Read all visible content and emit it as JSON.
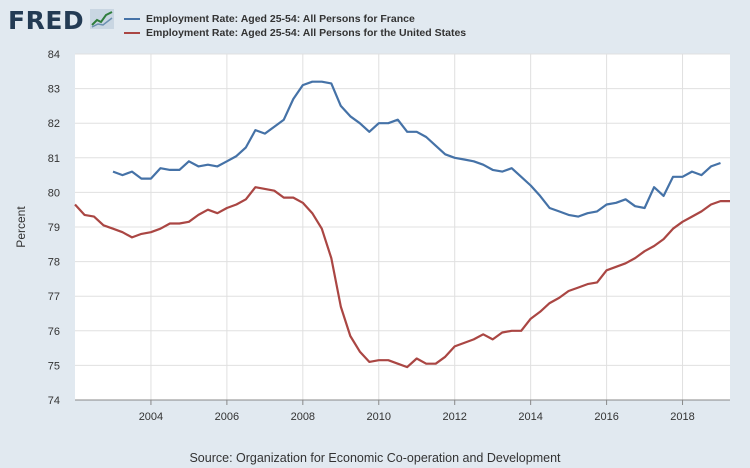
{
  "header": {
    "logo_text": "FRED",
    "logo_icon": "chart-line-icon"
  },
  "source": "Source: Organization for Economic Co-operation and Development",
  "chart_data": {
    "type": "line",
    "title": "",
    "xlabel": "",
    "ylabel": "Percent",
    "xlim": [
      2002.0,
      2019.25
    ],
    "ylim": [
      74,
      84
    ],
    "y_ticks": [
      74,
      75,
      76,
      77,
      78,
      79,
      80,
      81,
      82,
      83,
      84
    ],
    "x_ticks": [
      2004,
      2006,
      2008,
      2010,
      2012,
      2014,
      2016,
      2018
    ],
    "grid": true,
    "legend_position": "top",
    "series": [
      {
        "name": "Employment Rate: Aged 25-54: All Persons for France",
        "color": "#4572a7",
        "x": [
          2003.0,
          2003.25,
          2003.5,
          2003.75,
          2004.0,
          2004.25,
          2004.5,
          2004.75,
          2005.0,
          2005.25,
          2005.5,
          2005.75,
          2006.0,
          2006.25,
          2006.5,
          2006.75,
          2007.0,
          2007.25,
          2007.5,
          2007.75,
          2008.0,
          2008.25,
          2008.5,
          2008.75,
          2009.0,
          2009.25,
          2009.5,
          2009.75,
          2010.0,
          2010.25,
          2010.5,
          2010.75,
          2011.0,
          2011.25,
          2011.5,
          2011.75,
          2012.0,
          2012.25,
          2012.5,
          2012.75,
          2013.0,
          2013.25,
          2013.5,
          2013.75,
          2014.0,
          2014.25,
          2014.5,
          2014.75,
          2015.0,
          2015.25,
          2015.5,
          2015.75,
          2016.0,
          2016.25,
          2016.5,
          2016.75,
          2017.0,
          2017.25,
          2017.5,
          2017.75,
          2018.0,
          2018.25,
          2018.5,
          2018.75,
          2019.0
        ],
        "y": [
          80.6,
          80.5,
          80.6,
          80.4,
          80.4,
          80.7,
          80.65,
          80.65,
          80.9,
          80.75,
          80.8,
          80.75,
          80.9,
          81.05,
          81.3,
          81.8,
          81.7,
          81.9,
          82.1,
          82.7,
          83.1,
          83.2,
          83.2,
          83.15,
          82.5,
          82.2,
          82.0,
          81.75,
          82.0,
          82.0,
          82.1,
          81.75,
          81.75,
          81.6,
          81.35,
          81.1,
          81.0,
          80.95,
          80.9,
          80.8,
          80.65,
          80.6,
          80.7,
          80.45,
          80.2,
          79.9,
          79.55,
          79.45,
          79.35,
          79.3,
          79.4,
          79.45,
          79.65,
          79.7,
          79.8,
          79.6,
          79.55,
          80.15,
          79.9,
          80.45,
          80.45,
          80.6,
          80.5,
          80.75,
          80.85
        ]
      },
      {
        "name": "Employment Rate: Aged 25-54: All Persons for the United States",
        "color": "#aa4643",
        "x": [
          2002.0,
          2002.25,
          2002.5,
          2002.75,
          2003.0,
          2003.25,
          2003.5,
          2003.75,
          2004.0,
          2004.25,
          2004.5,
          2004.75,
          2005.0,
          2005.25,
          2005.5,
          2005.75,
          2006.0,
          2006.25,
          2006.5,
          2006.75,
          2007.0,
          2007.25,
          2007.5,
          2007.75,
          2008.0,
          2008.25,
          2008.5,
          2008.75,
          2009.0,
          2009.25,
          2009.5,
          2009.75,
          2010.0,
          2010.25,
          2010.5,
          2010.75,
          2011.0,
          2011.25,
          2011.5,
          2011.75,
          2012.0,
          2012.25,
          2012.5,
          2012.75,
          2013.0,
          2013.25,
          2013.5,
          2013.75,
          2014.0,
          2014.25,
          2014.5,
          2014.75,
          2015.0,
          2015.25,
          2015.5,
          2015.75,
          2016.0,
          2016.25,
          2016.5,
          2016.75,
          2017.0,
          2017.25,
          2017.5,
          2017.75,
          2018.0,
          2018.25,
          2018.5,
          2018.75,
          2019.0,
          2019.25
        ],
        "y": [
          79.65,
          79.35,
          79.3,
          79.05,
          78.95,
          78.85,
          78.7,
          78.8,
          78.85,
          78.95,
          79.1,
          79.1,
          79.15,
          79.35,
          79.5,
          79.4,
          79.55,
          79.65,
          79.8,
          80.15,
          80.1,
          80.05,
          79.85,
          79.85,
          79.7,
          79.4,
          78.95,
          78.1,
          76.7,
          75.85,
          75.4,
          75.1,
          75.15,
          75.15,
          75.05,
          74.95,
          75.2,
          75.05,
          75.05,
          75.25,
          75.55,
          75.65,
          75.75,
          75.9,
          75.75,
          75.95,
          76.0,
          76.0,
          76.35,
          76.55,
          76.8,
          76.95,
          77.15,
          77.25,
          77.35,
          77.4,
          77.75,
          77.85,
          77.95,
          78.1,
          78.3,
          78.45,
          78.65,
          78.95,
          79.15,
          79.3,
          79.45,
          79.65,
          79.75,
          79.75
        ]
      }
    ]
  }
}
